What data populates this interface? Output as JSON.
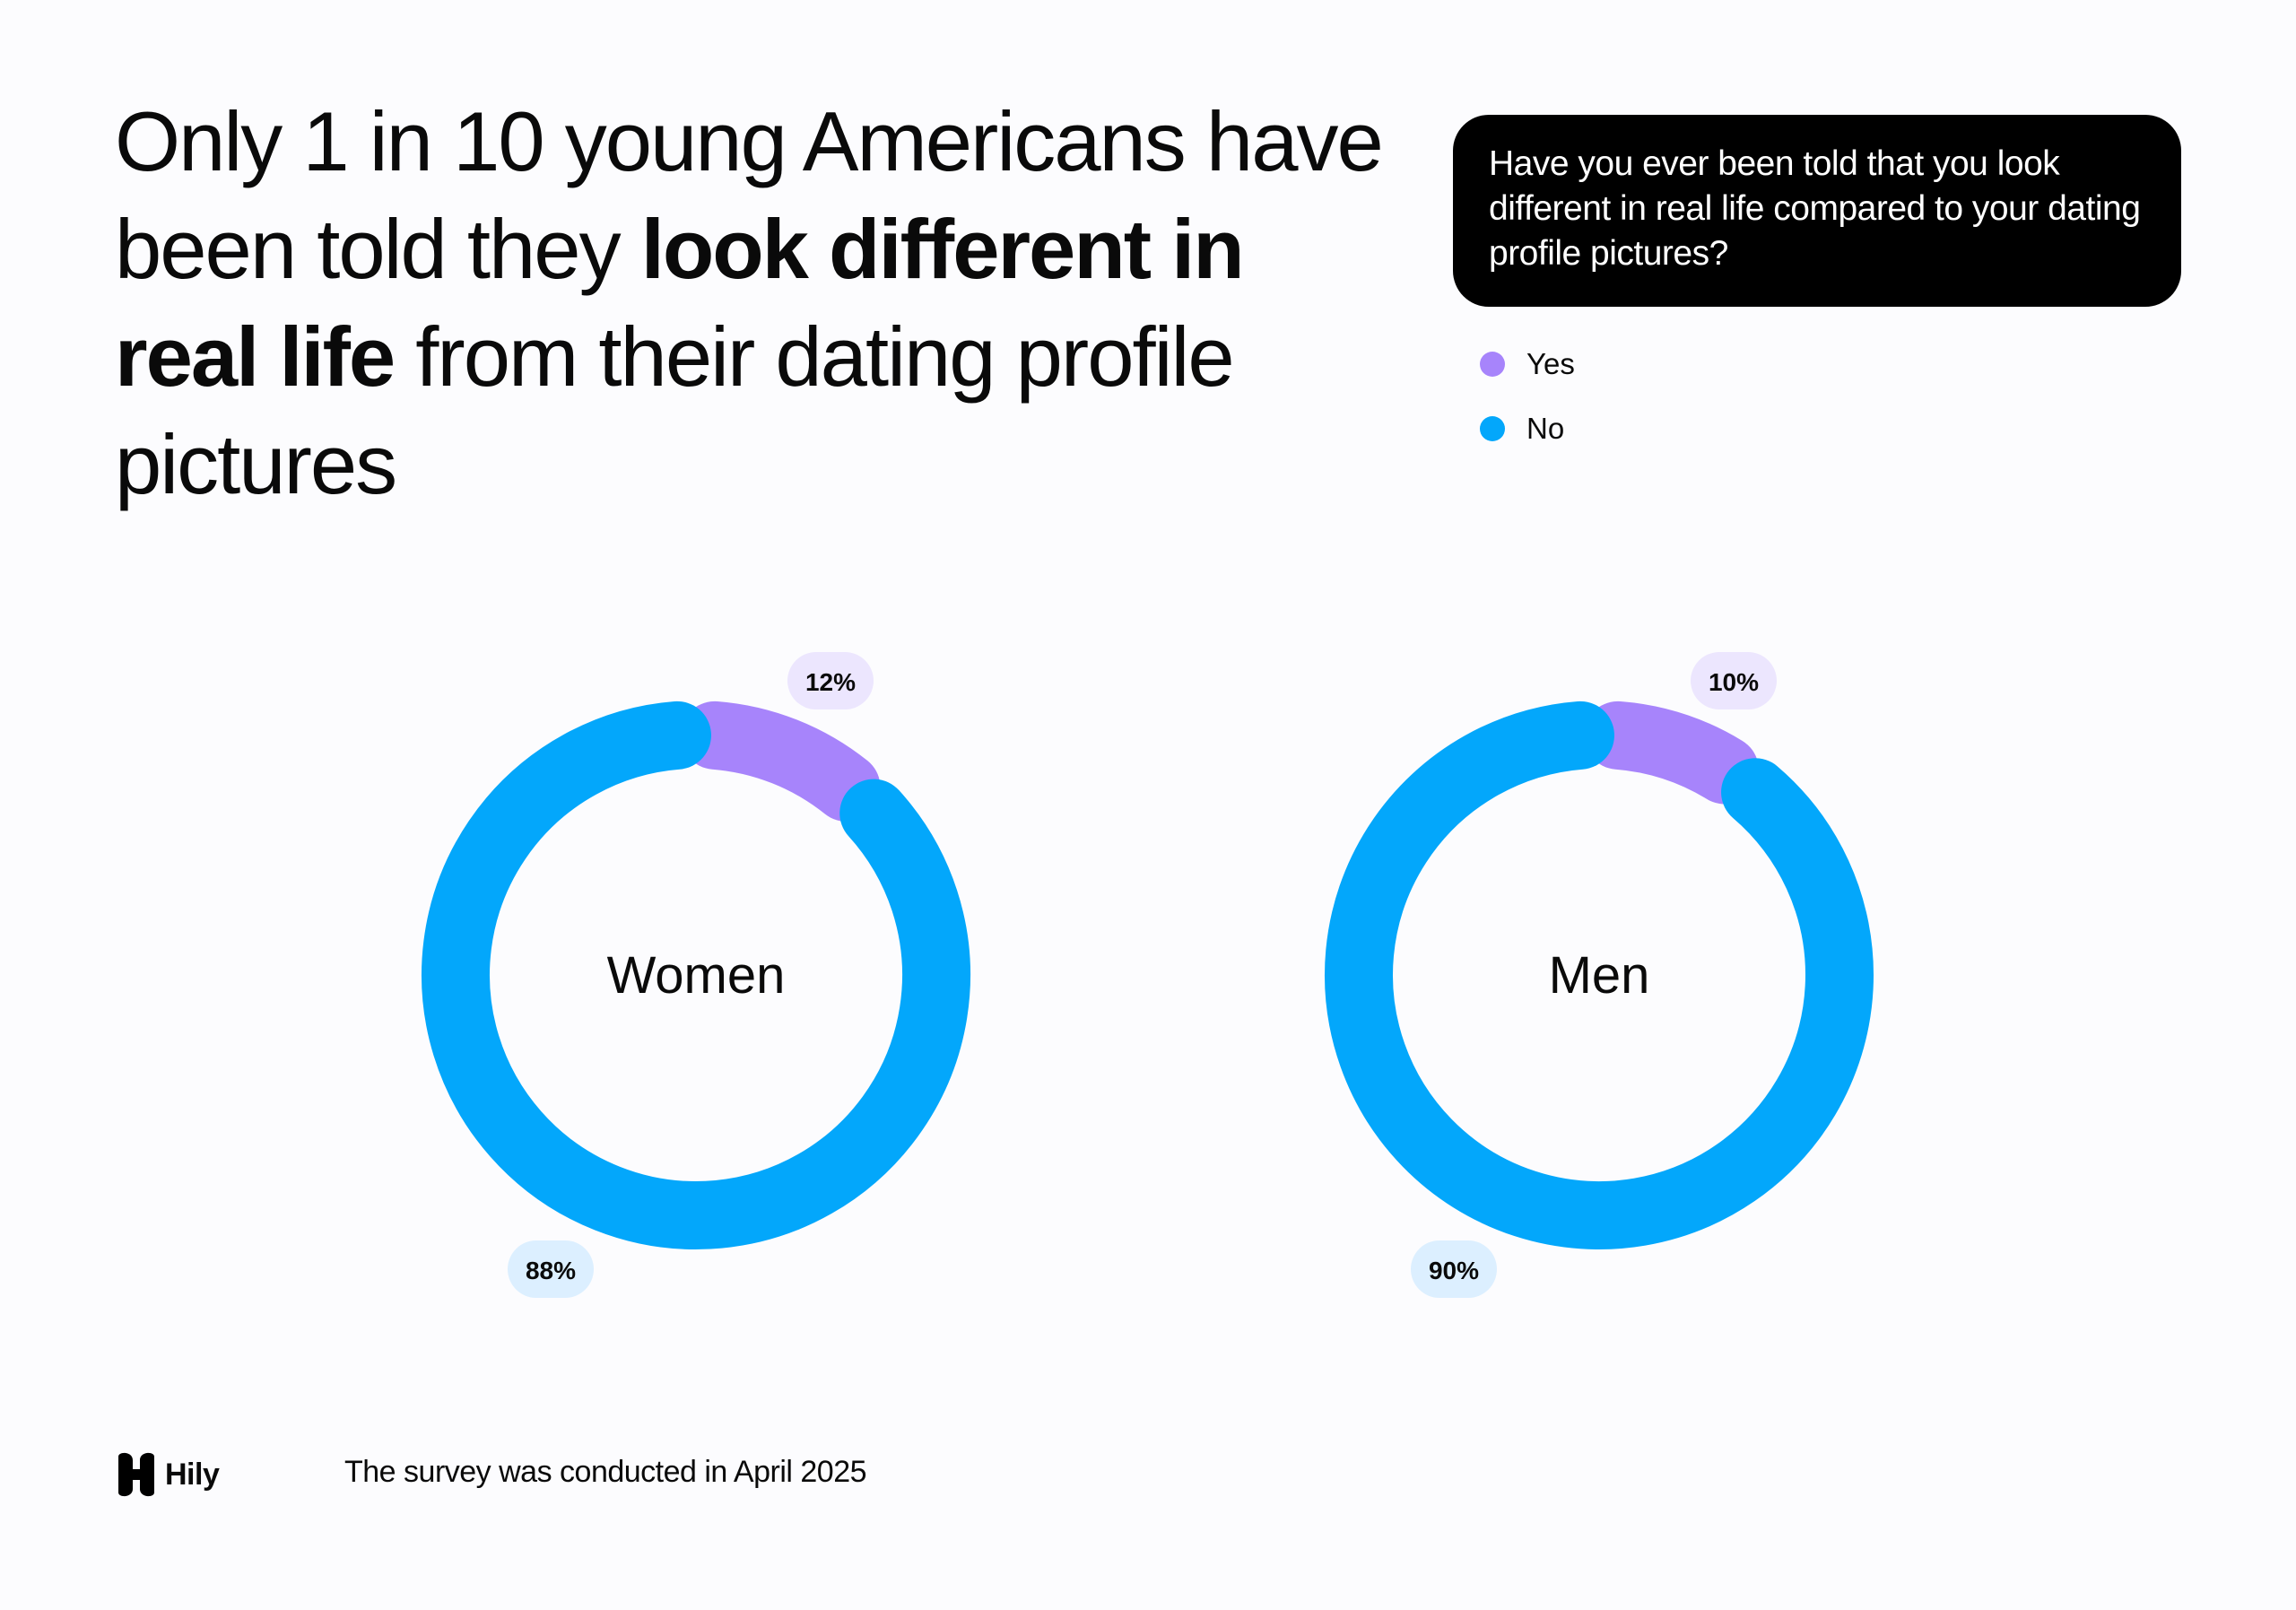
{
  "headline": {
    "part1": "Only 1 in 10 young Americans have been told they ",
    "bold": "look different in real life",
    "part2": " from their dating profile pictures"
  },
  "question": "Have you ever been told that you look different in real life compared to your dating profile pictures?",
  "legend": [
    {
      "label": "Yes",
      "color": "#a784fb"
    },
    {
      "label": "No",
      "color": "#03a7fb"
    }
  ],
  "chart_data": [
    {
      "type": "pie",
      "center_label": "Women",
      "categories": [
        "Yes",
        "No"
      ],
      "values": [
        12,
        88
      ],
      "labels": [
        "12%",
        "88%"
      ],
      "colors": [
        "#a784fb",
        "#03a7fb"
      ],
      "label_backgrounds": [
        "#ece6fe",
        "#dcefff"
      ]
    },
    {
      "type": "pie",
      "center_label": "Men",
      "categories": [
        "Yes",
        "No"
      ],
      "values": [
        10,
        90
      ],
      "labels": [
        "10%",
        "90%"
      ],
      "colors": [
        "#a784fb",
        "#03a7fb"
      ],
      "label_backgrounds": [
        "#ece6fe",
        "#dcefff"
      ]
    }
  ],
  "footer": {
    "logo_text": "Hily",
    "note": "The survey was conducted in April 2025"
  }
}
